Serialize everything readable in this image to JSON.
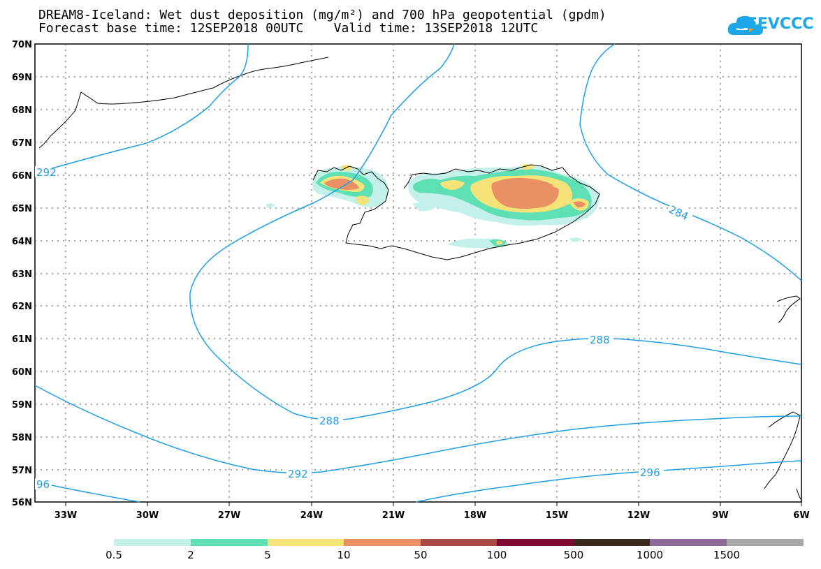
{
  "header": {
    "title_line1": "DREAM8-Iceland: Wet dust deposition (mg/m²) and 700 hPa geopotential (gpdm)",
    "title_line2": "Forecast base time: 12SEP2018 00UTC    Valid time: 13SEP2018 12UTC"
  },
  "logo": {
    "text": "SEEVCCC",
    "icon": "cloud-icon",
    "color": "#1ea7e8"
  },
  "map": {
    "projection": "lat-lon",
    "lon_range": [
      -34,
      -6
    ],
    "lat_range": [
      56,
      70
    ],
    "grid": true,
    "lat_ticks": [
      "70N",
      "69N",
      "68N",
      "67N",
      "66N",
      "65N",
      "64N",
      "63N",
      "62N",
      "61N",
      "60N",
      "59N",
      "58N",
      "57N",
      "56N"
    ],
    "lon_ticks": [
      "33W",
      "30W",
      "27W",
      "24W",
      "21W",
      "18W",
      "15W",
      "12W",
      "9W",
      "6W"
    ],
    "contour_color": "#1e9ee6",
    "contour_labels": [
      "284",
      "288",
      "288",
      "292",
      "296",
      "292",
      "96"
    ]
  },
  "legend": {
    "labels": [
      "0.5",
      "2",
      "5",
      "10",
      "50",
      "100",
      "500",
      "1000",
      "1500"
    ],
    "colors": [
      "#c3f1e9",
      "#5ee0b4",
      "#f5e37a",
      "#e88f64",
      "#a64b44",
      "#7d0a30",
      "#3a2a1c",
      "#8d6a9a",
      "#a8a8a8"
    ]
  }
}
